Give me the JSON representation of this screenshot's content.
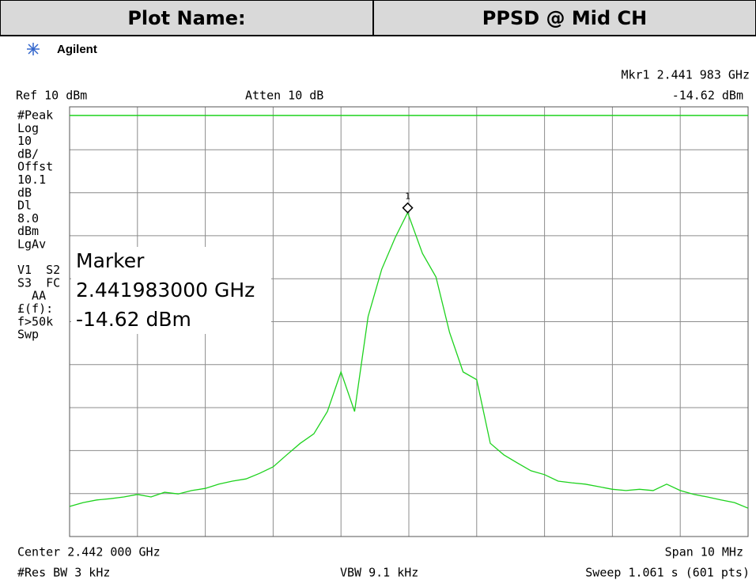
{
  "header": {
    "label": "Plot Name:",
    "value": "PPSD @ Mid CH"
  },
  "chart_data": {
    "type": "line",
    "brand": "Agilent",
    "ref_label": "Ref 10 dBm",
    "atten_label": "Atten 10 dB",
    "marker_readout": [
      "Mkr1  2.441 983 GHz",
      "-14.62 dBm"
    ],
    "side_labels": [
      "#Peak",
      "Log",
      "10",
      "dB/",
      "Offst",
      "10.1",
      "dB",
      "Dl",
      "8.0",
      "dBm",
      "LgAv",
      "",
      "V1  S2",
      "S3  FC",
      "  AA",
      "£(f):",
      "f>50k",
      "Swp"
    ],
    "marker_box": [
      "Marker",
      "2.441983000 GHz",
      "-14.62 dBm"
    ],
    "footer": {
      "center": "Center 2.442 000 GHz",
      "span": "Span 10 MHz",
      "rbw": "#Res BW 3 kHz",
      "vbw": "VBW 9.1 kHz",
      "sweep": "Sweep 1.061 s (601 pts)"
    },
    "xlim": [
      2.437,
      2.447
    ],
    "ylim": [
      -90,
      10
    ],
    "xticks": [
      2.437,
      2.438,
      2.439,
      2.44,
      2.441,
      2.442,
      2.443,
      2.444,
      2.445,
      2.446,
      2.447
    ],
    "yticks": [
      -90,
      -80,
      -70,
      -60,
      -50,
      -40,
      -30,
      -20,
      -10,
      0,
      10
    ],
    "grid": true,
    "display_line": 8.0,
    "marker": {
      "label": "1",
      "x": 2.441983,
      "value": -14.62
    },
    "series": [
      {
        "color": "#1ed21e",
        "x": [
          2.437,
          2.4372,
          2.4374,
          2.4376,
          2.4378,
          2.438,
          2.4382,
          2.4384,
          2.4386,
          2.4388,
          2.439,
          2.4392,
          2.4394,
          2.4396,
          2.4398,
          2.44,
          2.4402,
          2.4404,
          2.4406,
          2.4408,
          2.441,
          2.4412,
          2.4414,
          2.4416,
          2.4418,
          2.441983,
          2.4422,
          2.4424,
          2.4426,
          2.4428,
          2.443,
          2.4432,
          2.4434,
          2.4436,
          2.4438,
          2.444,
          2.4442,
          2.4444,
          2.4446,
          2.4448,
          2.445,
          2.4452,
          2.4454,
          2.4456,
          2.4458,
          2.446,
          2.4462,
          2.4464,
          2.4466,
          2.4468,
          2.447
        ],
        "values": [
          -83.0,
          -82.1,
          -81.5,
          -81.2,
          -80.8,
          -80.2,
          -80.8,
          -79.7,
          -80.1,
          -79.3,
          -78.8,
          -77.8,
          -77.1,
          -76.6,
          -75.3,
          -73.8,
          -71.0,
          -68.3,
          -66.1,
          -60.9,
          -51.7,
          -60.9,
          -38.8,
          -27.8,
          -20.4,
          -14.62,
          -24.1,
          -29.6,
          -42.5,
          -51.7,
          -53.5,
          -68.3,
          -71.0,
          -72.9,
          -74.7,
          -75.6,
          -77.1,
          -77.5,
          -77.8,
          -78.4,
          -79.0,
          -79.3,
          -79.0,
          -79.3,
          -77.8,
          -79.3,
          -80.2,
          -80.8,
          -81.5,
          -82.1,
          -83.4
        ]
      }
    ]
  }
}
